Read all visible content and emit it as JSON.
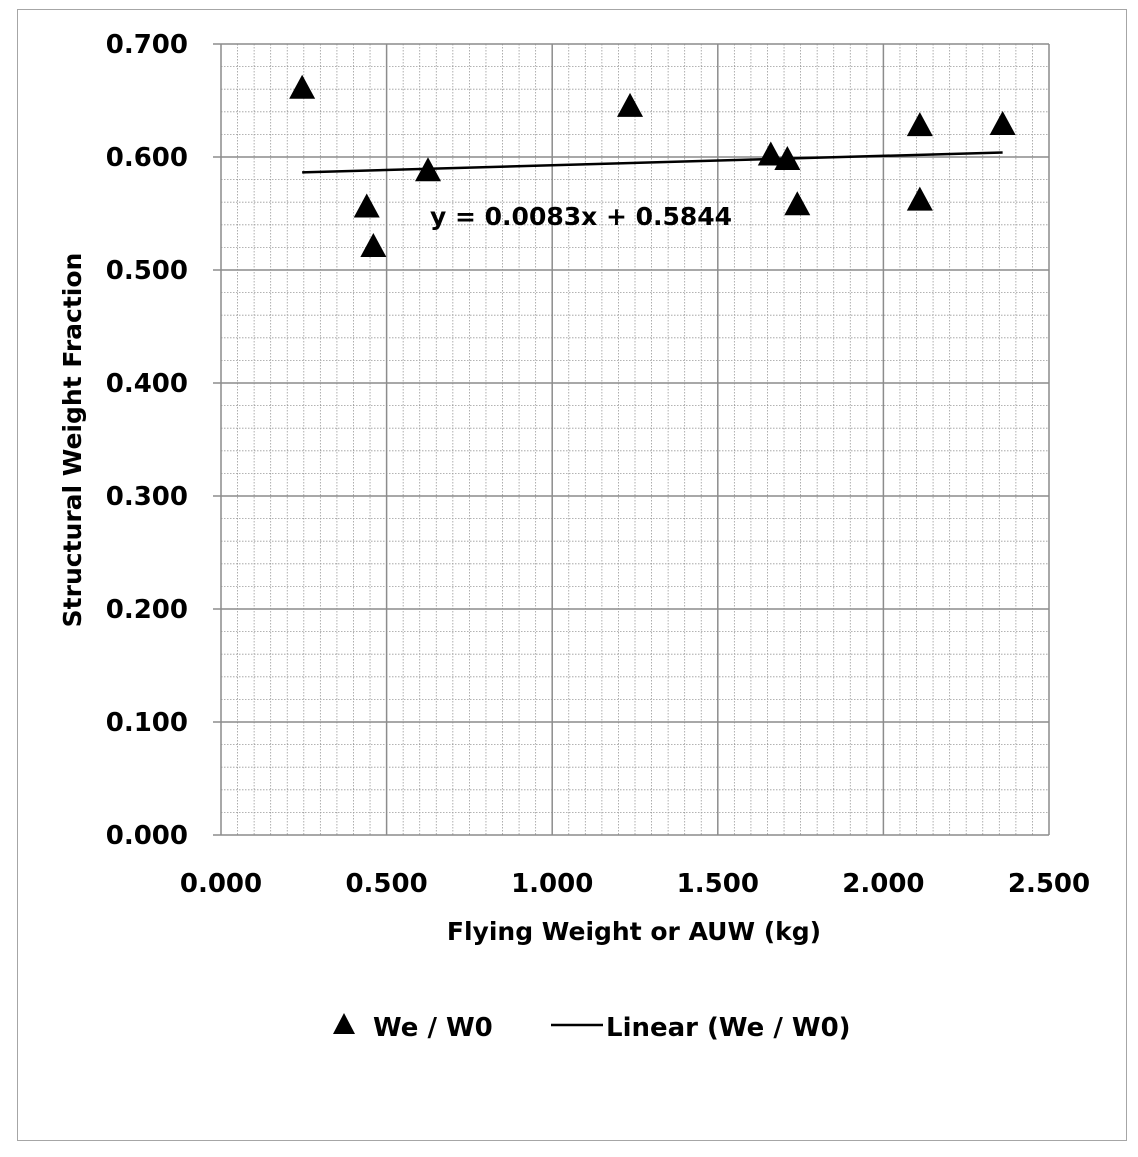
{
  "chart_data": {
    "type": "scatter",
    "title": "",
    "xlabel": "Flying Weight or AUW (kg)",
    "ylabel": "Structural Weight Fraction",
    "xlim": [
      0,
      2.5
    ],
    "ylim": [
      0,
      0.7
    ],
    "x_ticks": [
      "0.000",
      "0.500",
      "1.000",
      "1.500",
      "2.000",
      "2.500"
    ],
    "y_ticks": [
      "0.000",
      "0.100",
      "0.200",
      "0.300",
      "0.400",
      "0.500",
      "0.600",
      "0.700"
    ],
    "grid": true,
    "legend_position": "bottom",
    "series": [
      {
        "name": "We / W0",
        "marker": "triangle",
        "color": "#000000",
        "points": [
          {
            "x": 0.245,
            "y": 0.66
          },
          {
            "x": 0.44,
            "y": 0.555
          },
          {
            "x": 0.46,
            "y": 0.52
          },
          {
            "x": 0.625,
            "y": 0.587
          },
          {
            "x": 1.235,
            "y": 0.644
          },
          {
            "x": 1.66,
            "y": 0.601
          },
          {
            "x": 1.71,
            "y": 0.597
          },
          {
            "x": 1.74,
            "y": 0.557
          },
          {
            "x": 2.11,
            "y": 0.627
          },
          {
            "x": 2.11,
            "y": 0.561
          },
          {
            "x": 2.36,
            "y": 0.628
          }
        ]
      }
    ],
    "trendline": {
      "name": "Linear (We / W0)",
      "slope": 0.0083,
      "intercept": 0.5844,
      "x_range": [
        0.245,
        2.36
      ],
      "color": "#000000"
    },
    "annotation": "y = 0.0083x + 0.5844"
  }
}
